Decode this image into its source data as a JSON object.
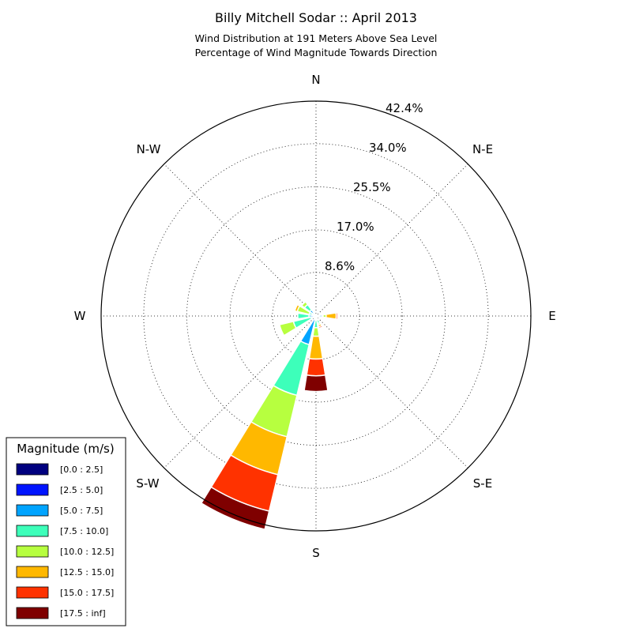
{
  "chart_data": {
    "type": "windrose",
    "title": "Billy Mitchell Sodar :: April 2013",
    "subtitle_line1": "Wind Distribution at 191 Meters Above Sea Level",
    "subtitle_line2": "Percentage of Wind Magnitude Towards Direction",
    "direction_labels": {
      "n": "N",
      "ne": "N-E",
      "e": "E",
      "se": "S-E",
      "s": "S",
      "sw": "S-W",
      "w": "W",
      "nw": "N-W"
    },
    "radial_tick_labels": [
      "8.6%",
      "17.0%",
      "25.5%",
      "34.0%",
      "42.4%"
    ],
    "radial_ticks": [
      8.6,
      17.0,
      25.5,
      34.0,
      42.4
    ],
    "rmax": 42.4,
    "grid": true,
    "legend": {
      "title": "Magnitude (m/s)",
      "placement": "lower-left",
      "entries": [
        "[0.0 : 2.5]",
        "[2.5 : 5.0]",
        "[5.0 : 7.5]",
        "[7.5 : 10.0]",
        "[10.0 : 12.5]",
        "[12.5 : 15.0]",
        "[15.0 : 17.5]",
        "[17.5 : inf]"
      ]
    },
    "bin_colors": [
      "#00007f",
      "#0014ff",
      "#00a4ff",
      "#3dffba",
      "#b7ff3f",
      "#ffb800",
      "#ff3200",
      "#7f0000"
    ],
    "directions_deg": [
      0,
      22.5,
      45,
      67.5,
      90,
      112.5,
      135,
      157.5,
      180,
      202.5,
      225,
      247.5,
      270,
      292.5,
      315,
      337.5
    ],
    "cumulative_percent": [
      [
        0,
        0,
        0,
        0,
        0,
        0,
        0,
        0
      ],
      [
        0.1,
        0.2,
        0.4,
        0.4,
        0.4,
        0.4,
        0.4,
        0.4
      ],
      [
        0,
        0,
        0,
        0,
        0,
        0,
        0,
        0
      ],
      [
        0,
        0,
        0,
        0,
        0,
        0,
        0,
        0
      ],
      [
        0.1,
        0.3,
        1.2,
        1.4,
        2.0,
        4.0,
        4.3,
        4.3
      ],
      [
        0,
        0,
        0,
        0,
        0,
        0,
        0,
        0
      ],
      [
        0,
        0,
        0,
        0,
        0,
        0,
        0,
        0
      ],
      [
        0.2,
        0.4,
        0.8,
        1.5,
        1.8,
        2.2,
        2.5,
        2.5
      ],
      [
        0.1,
        0.3,
        0.8,
        2.3,
        4.0,
        8.5,
        11.8,
        14.9
      ],
      [
        0.1,
        0.5,
        5.8,
        16.1,
        24.5,
        32.2,
        39.6,
        43.3
      ],
      [
        0,
        0,
        0,
        0,
        0,
        0,
        0,
        0
      ],
      [
        0.2,
        0.5,
        1.0,
        4.6,
        7.4,
        7.4,
        7.4,
        7.4
      ],
      [
        0.3,
        0.4,
        1.4,
        3.6,
        3.6,
        3.6,
        3.6,
        3.6
      ],
      [
        0.2,
        0.5,
        0.8,
        1.4,
        3.8,
        4.3,
        4.3,
        4.3
      ],
      [
        0.2,
        0.4,
        1.5,
        2.8,
        3.5,
        3.5,
        3.5,
        3.5
      ],
      [
        0,
        0,
        0,
        0,
        0,
        0,
        0,
        0
      ]
    ]
  }
}
